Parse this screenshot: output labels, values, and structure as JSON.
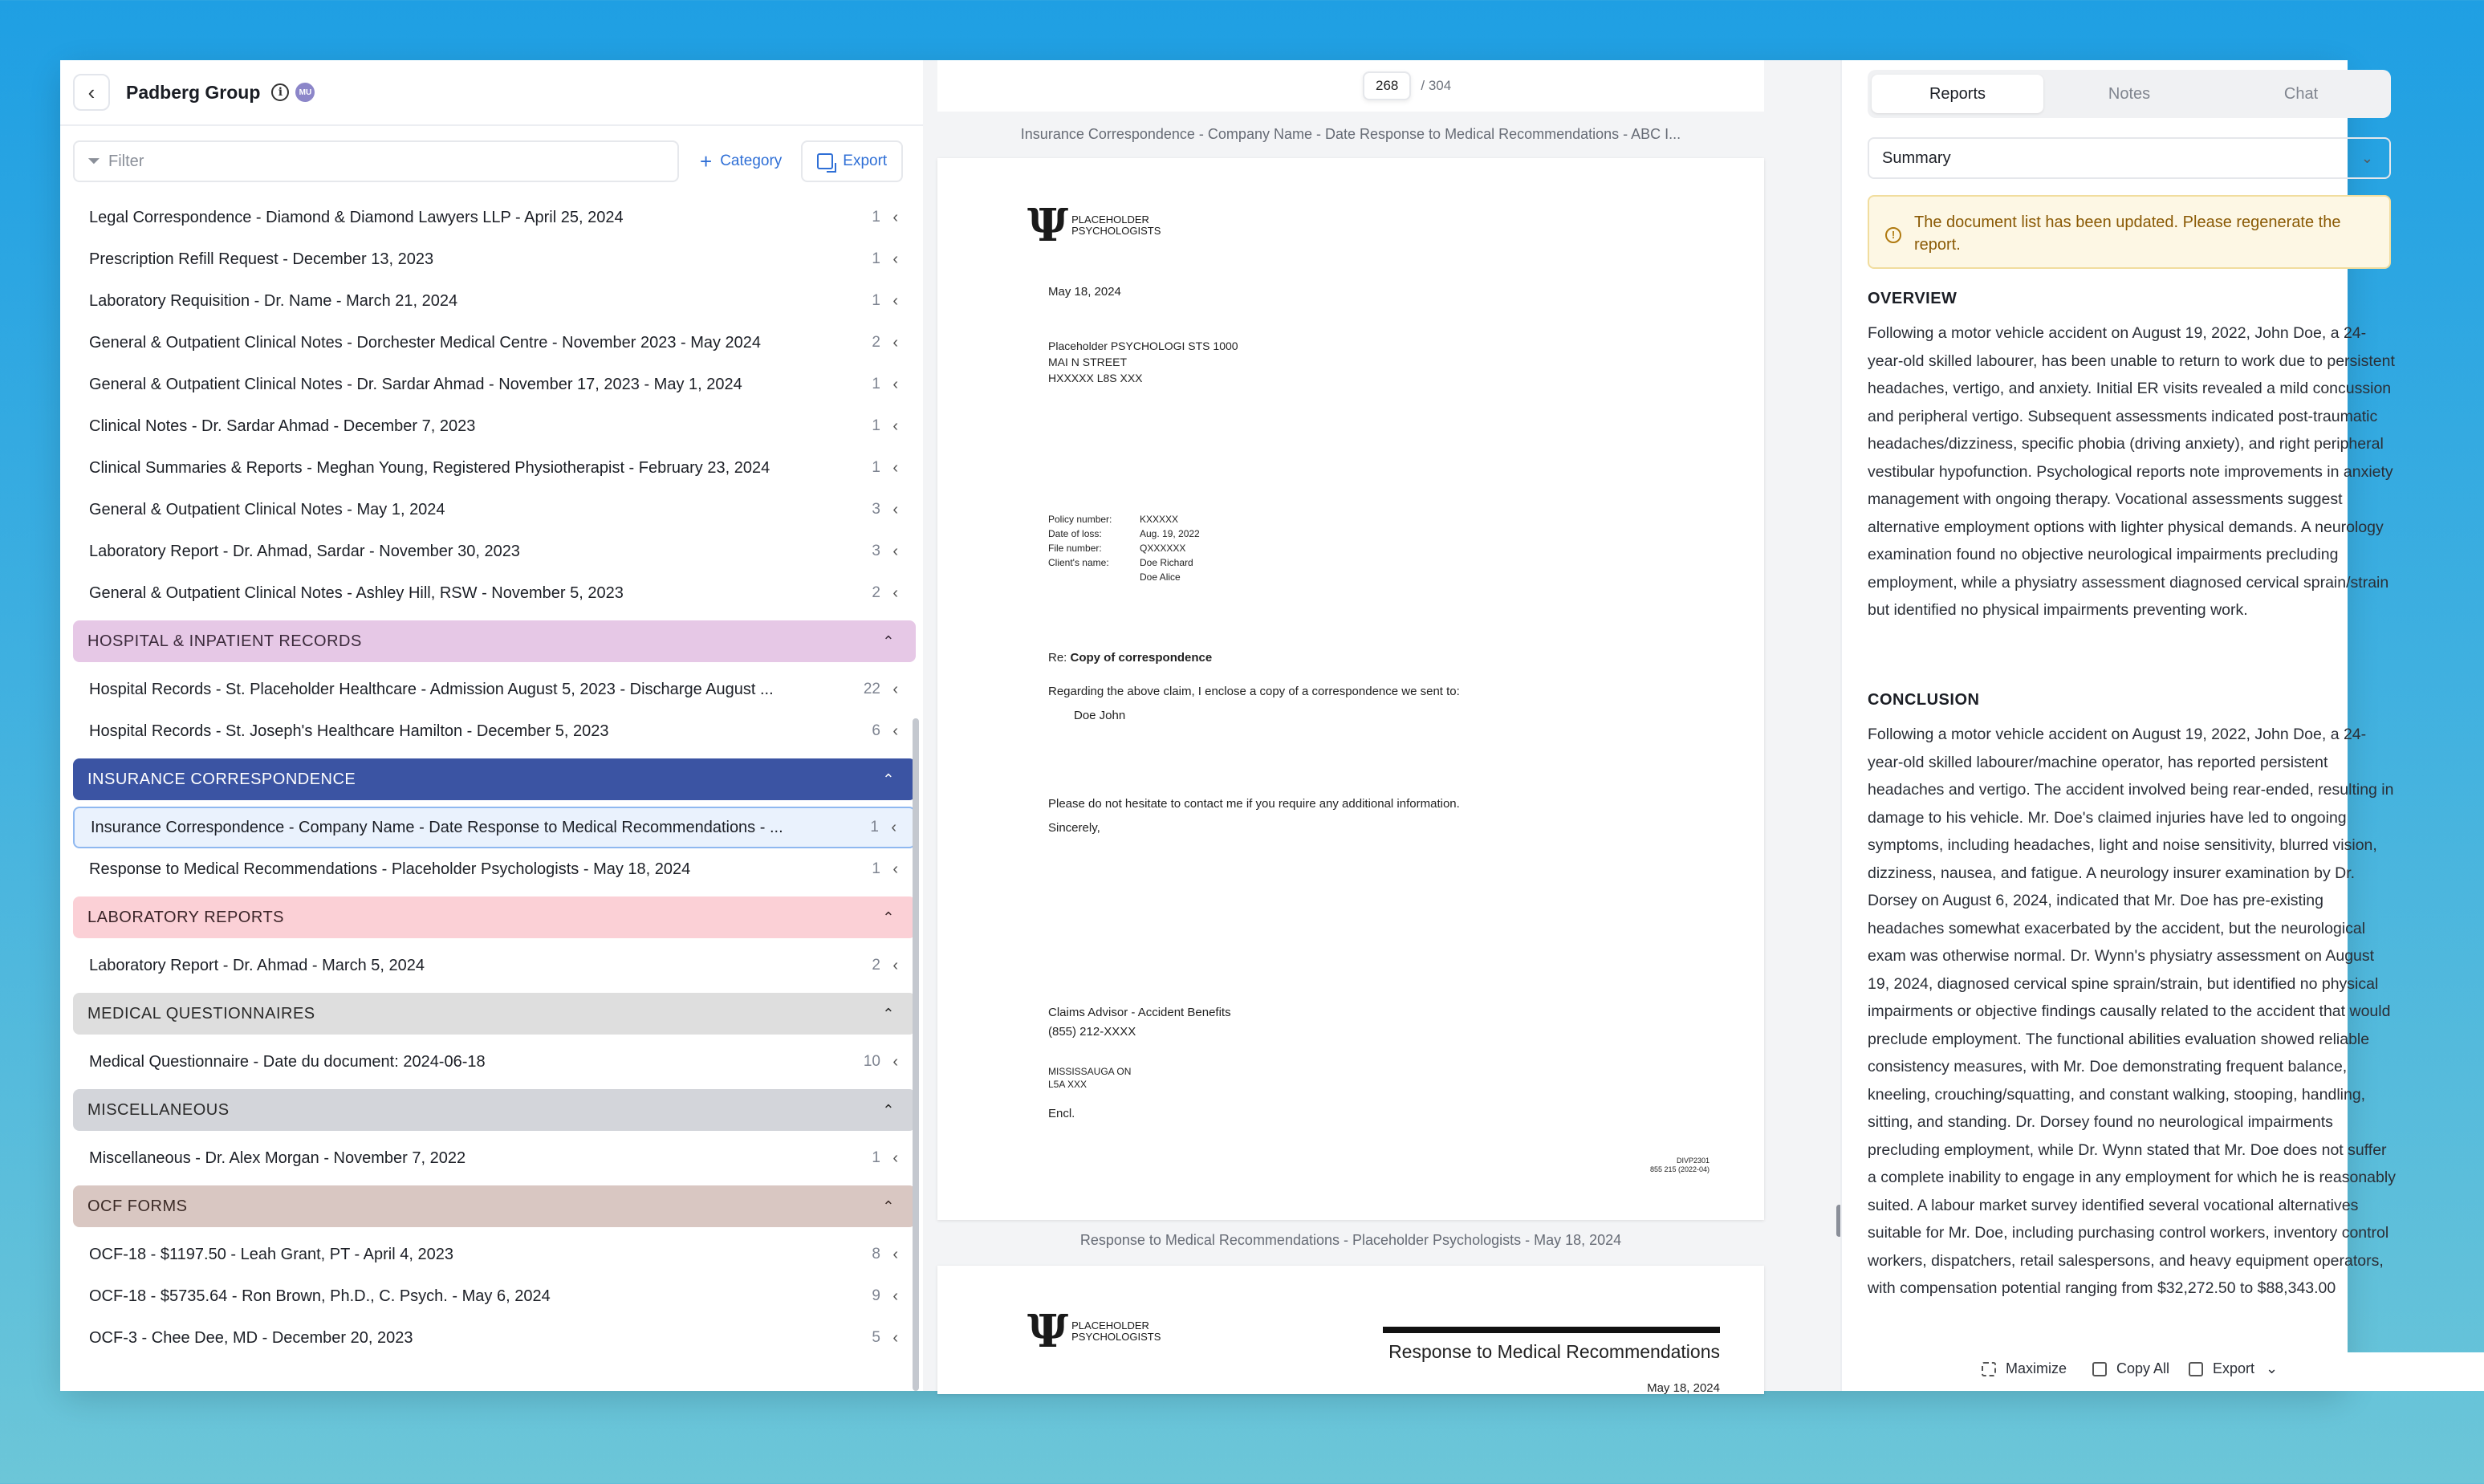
{
  "header": {
    "title": "Padberg Group",
    "badge": "MU"
  },
  "toolbar": {
    "filter_placeholder": "Filter",
    "category_label": "Category",
    "export_label": "Export"
  },
  "documents_top": [
    {
      "title": "Legal Correspondence - Diamond & Diamond Lawyers LLP - April 25, 2024",
      "count": "1"
    },
    {
      "title": "Prescription Refill Request - December 13, 2023",
      "count": "1"
    },
    {
      "title": "Laboratory Requisition - Dr. Name - March 21, 2024",
      "count": "1"
    },
    {
      "title": "General & Outpatient Clinical Notes - Dorchester Medical Centre - November 2023 - May 2024",
      "count": "2"
    },
    {
      "title": "General & Outpatient Clinical Notes - Dr. Sardar Ahmad - November 17, 2023 - May 1, 2024",
      "count": "1"
    },
    {
      "title": "Clinical Notes - Dr. Sardar Ahmad - December 7, 2023",
      "count": "1"
    },
    {
      "title": "Clinical Summaries & Reports - Meghan Young, Registered Physiotherapist - February 23, 2024",
      "count": "1"
    },
    {
      "title": "General & Outpatient Clinical Notes - May 1, 2024",
      "count": "3"
    },
    {
      "title": "Laboratory Report - Dr. Ahmad, Sardar - November 30, 2023",
      "count": "3"
    },
    {
      "title": "General & Outpatient Clinical Notes - Ashley Hill, RSW - November 5, 2023",
      "count": "2"
    }
  ],
  "categories": [
    {
      "name": "HOSPITAL & INPATIENT RECORDS",
      "bg": "#e6c8e6",
      "fg": "#3b2a3b",
      "items": [
        {
          "title": "Hospital Records - St. Placeholder Healthcare - Admission August 5, 2023 - Discharge August ...",
          "count": "22"
        },
        {
          "title": "Hospital Records - St. Joseph's Healthcare Hamilton - December 5, 2023",
          "count": "6"
        }
      ]
    },
    {
      "name": "INSURANCE CORRESPONDENCE",
      "bg": "#3b54a3",
      "fg": "#ffffff",
      "items": [
        {
          "title": "Insurance Correspondence - Company Name - Date Response to Medical Recommendations - ...",
          "count": "1",
          "selected": true
        },
        {
          "title": "Response to Medical Recommendations - Placeholder Psychologists - May 18, 2024",
          "count": "1"
        }
      ]
    },
    {
      "name": "LABORATORY REPORTS",
      "bg": "#fbd0d6",
      "fg": "#3b2428",
      "items": [
        {
          "title": "Laboratory Report - Dr. Ahmad - March 5, 2024",
          "count": "2"
        }
      ]
    },
    {
      "name": "MEDICAL QUESTIONNAIRES",
      "bg": "#dedede",
      "fg": "#2a2a2a",
      "items": [
        {
          "title": "Medical Questionnaire - Date du document: 2024-06-18",
          "count": "10"
        }
      ]
    },
    {
      "name": "MISCELLANEOUS",
      "bg": "#d3d5da",
      "fg": "#2a2a2a",
      "items": [
        {
          "title": "Miscellaneous - Dr. Alex Morgan - November 7, 2022",
          "count": "1"
        }
      ]
    },
    {
      "name": "OCF FORMS",
      "bg": "#d9c7c2",
      "fg": "#3b2a26",
      "items": [
        {
          "title": "OCF-18 - $1197.50 - Leah Grant, PT - April 4, 2023",
          "count": "8"
        },
        {
          "title": "OCF-18 - $5735.64 - Ron Brown, Ph.D., C. Psych. - May 6, 2024",
          "count": "9"
        },
        {
          "title": "OCF-3 - Chee Dee, MD - December 20, 2023",
          "count": "5"
        }
      ]
    }
  ],
  "viewer": {
    "page_current": "268",
    "page_total": "/ 304",
    "doc1_caption": "Insurance Correspondence - Company Name - Date Response to Medical Recommendations - ABC I...",
    "doc2_caption": "Response to Medical Recommendations - Placeholder Psychologists - May 18, 2024",
    "logo_line1": "PLACEHOLDER",
    "logo_line2": "PSYCHOLOGISTS",
    "date": "May   18, 2024",
    "addr1": "Placeholder   PSYCHOLOGI STS 1000",
    "addr2": "MAI N STREET",
    "addr3": "HXXXXX    L8S  XXX",
    "policy_label": "Policy number:",
    "policy_value": "KXXXXX",
    "loss_label": "Date of loss:",
    "loss_value": "Aug.  19, 2022",
    "file_label": "File number:",
    "file_value": "QXXXXXX",
    "client_label": "Client's name:",
    "client_value1": "Doe Richard",
    "client_value2": "Doe Alice",
    "re_prefix": "Re:",
    "re_subject": "Copy of correspondence",
    "body1": "Regarding the above claim, I enclose a copy of a correspondence we sent to:",
    "recipient": "Doe John",
    "body2": "Please do not hesitate to contact me if you require any additional information.",
    "closing": "Sincerely,",
    "sig1": "Claims Advisor - Accident Benefits",
    "sig2": "(855) 212-XXXX",
    "sig3": "MISSISSAUGA ON",
    "sig4": "L5A XXX",
    "encl": "Encl.",
    "footer_code1": "DIVP2301",
    "footer_code2": "855 215 (2022-04)",
    "doc2_heading": "Response to Medical Recommendations",
    "doc2_date": "May  18, 2024"
  },
  "report": {
    "tabs": [
      "Reports",
      "Notes",
      "Chat"
    ],
    "select_value": "Summary",
    "alert": "The document list has been updated. Please regenerate the report.",
    "overview_heading": "OVERVIEW",
    "overview_text": "Following a motor vehicle accident on August 19, 2022, John Doe, a 24-year-old skilled labourer, has been unable to return to work due to persistent headaches, vertigo, and anxiety. Initial ER visits revealed a mild concussion and peripheral vertigo. Subsequent assessments indicated post-traumatic headaches/dizziness, specific phobia (driving anxiety), and right peripheral vestibular hypofunction. Psychological reports note improvements in anxiety management with ongoing therapy. Vocational assessments suggest alternative employment options with lighter physical demands. A neurology examination found no objective neurological impairments precluding employment, while a physiatry assessment diagnosed cervical sprain/strain but identified no physical impairments preventing work.",
    "conclusion_heading": "CONCLUSION",
    "conclusion_text": "Following a motor vehicle accident on August 19, 2022, John Doe, a 24-year-old skilled labourer/machine operator, has reported persistent headaches and vertigo. The accident involved being rear-ended, resulting in damage to his vehicle. Mr. Doe's claimed injuries have led to ongoing symptoms, including headaches, light and noise sensitivity, blurred vision, dizziness, nausea, and fatigue. A neurology insurer examination by Dr. Dorsey on August 6, 2024, indicated that Mr. Doe has pre-existing headaches somewhat exacerbated by the accident, but the neurological exam was otherwise normal. Dr. Wynn's physiatry assessment on August 19, 2024, diagnosed cervical spine sprain/strain, but identified no physical impairments or objective findings causally related to the accident that would preclude employment. The functional abilities evaluation showed reliable consistency measures, with Mr. Doe demonstrating frequent balance, kneeling, crouching/squatting, and constant walking, stooping, handling, sitting, and standing. Dr. Dorsey found no neurological impairments precluding employment, while Dr. Wynn stated that Mr. Doe does not suffer a complete inability to engage in any employment for which he is reasonably suited. A labour market survey identified several vocational alternatives suitable for Mr. Doe, including purchasing control workers, inventory control workers, dispatchers, retail salespersons, and heavy equipment operators, with compensation potential ranging from $32,272.50 to $88,343.00",
    "maximize_label": "Maximize",
    "copy_label": "Copy All",
    "export_label": "Export"
  }
}
